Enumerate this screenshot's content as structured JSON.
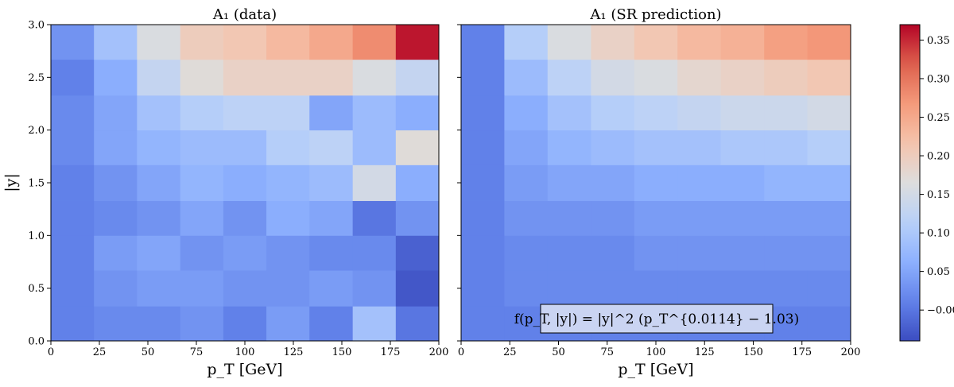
{
  "chart_data": [
    {
      "type": "heatmap",
      "title": "A₁ (data)",
      "xlabel": "p_T [GeV]",
      "ylabel": "|y|",
      "xlim": [
        0,
        200
      ],
      "ylim": [
        0.0,
        3.0
      ],
      "x_edges": [
        0,
        22.2,
        44.4,
        66.7,
        88.9,
        111.1,
        133.3,
        155.6,
        177.8,
        200
      ],
      "y_edges": [
        0.0,
        0.33,
        0.67,
        1.0,
        1.33,
        1.67,
        2.0,
        2.33,
        2.67,
        3.0
      ],
      "x_ticks": [
        "0",
        "25",
        "50",
        "75",
        "100",
        "125",
        "150",
        "175",
        "200"
      ],
      "y_ticks": [
        "0.0",
        "0.5",
        "1.0",
        "1.5",
        "2.0",
        "2.5",
        "3.0"
      ],
      "values_rows_bottom_to_top": [
        [
          0.01,
          0.02,
          0.02,
          0.03,
          0.01,
          0.04,
          0.01,
          0.09,
          0.0
        ],
        [
          0.01,
          0.03,
          0.04,
          0.04,
          0.03,
          0.03,
          0.04,
          0.03,
          -0.03
        ],
        [
          0.01,
          0.04,
          0.05,
          0.03,
          0.04,
          0.03,
          0.02,
          0.02,
          -0.02
        ],
        [
          0.01,
          0.02,
          0.03,
          0.05,
          0.03,
          0.06,
          0.05,
          0.0,
          0.03
        ],
        [
          0.01,
          0.03,
          0.05,
          0.07,
          0.06,
          0.07,
          0.08,
          0.15,
          0.06
        ],
        [
          0.02,
          0.05,
          0.07,
          0.08,
          0.08,
          0.11,
          0.12,
          0.08,
          0.17
        ],
        [
          0.02,
          0.05,
          0.09,
          0.11,
          0.12,
          0.12,
          0.05,
          0.08,
          0.06
        ],
        [
          0.01,
          0.06,
          0.13,
          0.17,
          0.19,
          0.19,
          0.19,
          0.16,
          0.13
        ],
        [
          0.03,
          0.09,
          0.16,
          0.2,
          0.21,
          0.23,
          0.25,
          0.28,
          0.36
        ]
      ]
    },
    {
      "type": "heatmap",
      "title": "A₁ (SR prediction)",
      "xlabel": "p_T [GeV]",
      "xlim": [
        0,
        200
      ],
      "ylim": [
        0.0,
        3.0
      ],
      "x_edges": [
        0,
        22.2,
        44.4,
        66.7,
        88.9,
        111.1,
        133.3,
        155.6,
        177.8,
        200
      ],
      "y_edges": [
        0.0,
        0.33,
        0.67,
        1.0,
        1.33,
        1.67,
        2.0,
        2.33,
        2.67,
        3.0
      ],
      "x_ticks": [
        "0",
        "25",
        "50",
        "75",
        "100",
        "125",
        "150",
        "175",
        "200"
      ],
      "annotation": "f(p_T, |y|) = |y|^2 (p_T^{0.0114} − 1.03)",
      "values_rows_bottom_to_top": [
        [
          0.01,
          0.01,
          0.01,
          0.01,
          0.01,
          0.01,
          0.01,
          0.01,
          0.01
        ],
        [
          0.01,
          0.02,
          0.02,
          0.02,
          0.02,
          0.02,
          0.02,
          0.02,
          0.02
        ],
        [
          0.01,
          0.02,
          0.02,
          0.02,
          0.03,
          0.03,
          0.03,
          0.03,
          0.03
        ],
        [
          0.01,
          0.03,
          0.03,
          0.03,
          0.04,
          0.04,
          0.04,
          0.04,
          0.04
        ],
        [
          0.01,
          0.04,
          0.05,
          0.05,
          0.06,
          0.06,
          0.06,
          0.07,
          0.07
        ],
        [
          0.01,
          0.05,
          0.07,
          0.08,
          0.09,
          0.09,
          0.1,
          0.1,
          0.11
        ],
        [
          0.01,
          0.06,
          0.09,
          0.11,
          0.12,
          0.13,
          0.14,
          0.14,
          0.15
        ],
        [
          0.01,
          0.08,
          0.12,
          0.15,
          0.16,
          0.18,
          0.19,
          0.2,
          0.21
        ],
        [
          0.01,
          0.11,
          0.16,
          0.19,
          0.21,
          0.23,
          0.24,
          0.26,
          0.27
        ]
      ]
    }
  ],
  "colorbar": {
    "colormap": "coolwarm",
    "vmin": -0.04,
    "vmax": 0.37,
    "ticks": [
      "−0.00",
      "0.05",
      "0.10",
      "0.15",
      "0.20",
      "0.25",
      "0.30",
      "0.35"
    ],
    "tick_values": [
      0.0,
      0.05,
      0.1,
      0.15,
      0.2,
      0.25,
      0.3,
      0.35
    ]
  }
}
